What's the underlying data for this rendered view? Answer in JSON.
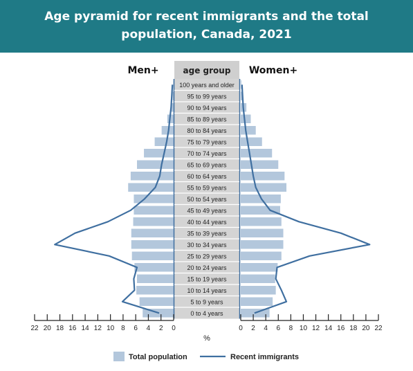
{
  "chart_data": {
    "type": "bar",
    "orientation": "horizontal-pyramid",
    "title": "Age pyramid for recent immigrants and the total population, Canada, 2021",
    "left_label": "Men+",
    "right_label": "Women+",
    "center_header": "age group",
    "xlabel": "%",
    "xlim": [
      0,
      22
    ],
    "xticks": [
      "22",
      "20",
      "18",
      "16",
      "14",
      "12",
      "10",
      "8",
      "6",
      "4",
      "2",
      "0"
    ],
    "xticks_right": [
      "0",
      "2",
      "4",
      "6",
      "8",
      "10",
      "12",
      "14",
      "16",
      "18",
      "20",
      "22"
    ],
    "categories": [
      "100 years and older",
      "95 to 99 years",
      "90 to 94 years",
      "85 to 89 years",
      "80 to 84 years",
      "75 to 79 years",
      "70 to 74 years",
      "65 to 69 years",
      "60 to 64 years",
      "55 to 59 years",
      "50 to 54 years",
      "45 to 49 years",
      "40 to 44 years",
      "35 to 39 years",
      "30 to 34 years",
      "25 to 29 years",
      "20 to 24 years",
      "15 to 19 years",
      "10 to 14 years",
      "5 to 9 years",
      "0 to 4 years"
    ],
    "series": [
      {
        "name": "Total population",
        "side": "men",
        "kind": "bar",
        "color": "#b3c7dc",
        "values": [
          0.05,
          0.15,
          0.4,
          1.0,
          1.9,
          3.0,
          4.7,
          5.8,
          6.8,
          7.2,
          6.3,
          6.3,
          6.4,
          6.7,
          6.7,
          6.6,
          6.2,
          5.8,
          5.9,
          5.4,
          4.9
        ]
      },
      {
        "name": "Total population",
        "side": "women",
        "kind": "bar",
        "color": "#b3c7dc",
        "values": [
          0.1,
          0.35,
          0.9,
          1.6,
          2.4,
          3.4,
          5.0,
          6.0,
          7.0,
          7.3,
          6.4,
          6.3,
          6.5,
          6.8,
          6.8,
          6.5,
          5.9,
          5.5,
          5.6,
          5.1,
          4.6
        ]
      },
      {
        "name": "Recent immigrants",
        "side": "men",
        "kind": "line",
        "color": "#3f6fa0",
        "values": [
          0.2,
          0.3,
          0.4,
          0.6,
          0.8,
          1.1,
          1.5,
          1.9,
          2.2,
          2.9,
          4.6,
          6.8,
          10.4,
          15.6,
          18.8,
          10.2,
          5.8,
          6.3,
          6.2,
          8.1,
          2.3
        ]
      },
      {
        "name": "Recent immigrants",
        "side": "women",
        "kind": "line",
        "color": "#3f6fa0",
        "values": [
          0.2,
          0.3,
          0.4,
          0.6,
          0.8,
          1.1,
          1.4,
          1.7,
          2.0,
          2.4,
          3.3,
          4.7,
          9.3,
          16.0,
          20.6,
          11.0,
          5.8,
          5.6,
          6.5,
          7.3,
          2.2
        ]
      }
    ],
    "legend": {
      "placement": "bottom",
      "items": [
        "Total population",
        "Recent immigrants"
      ]
    },
    "grid": false
  }
}
